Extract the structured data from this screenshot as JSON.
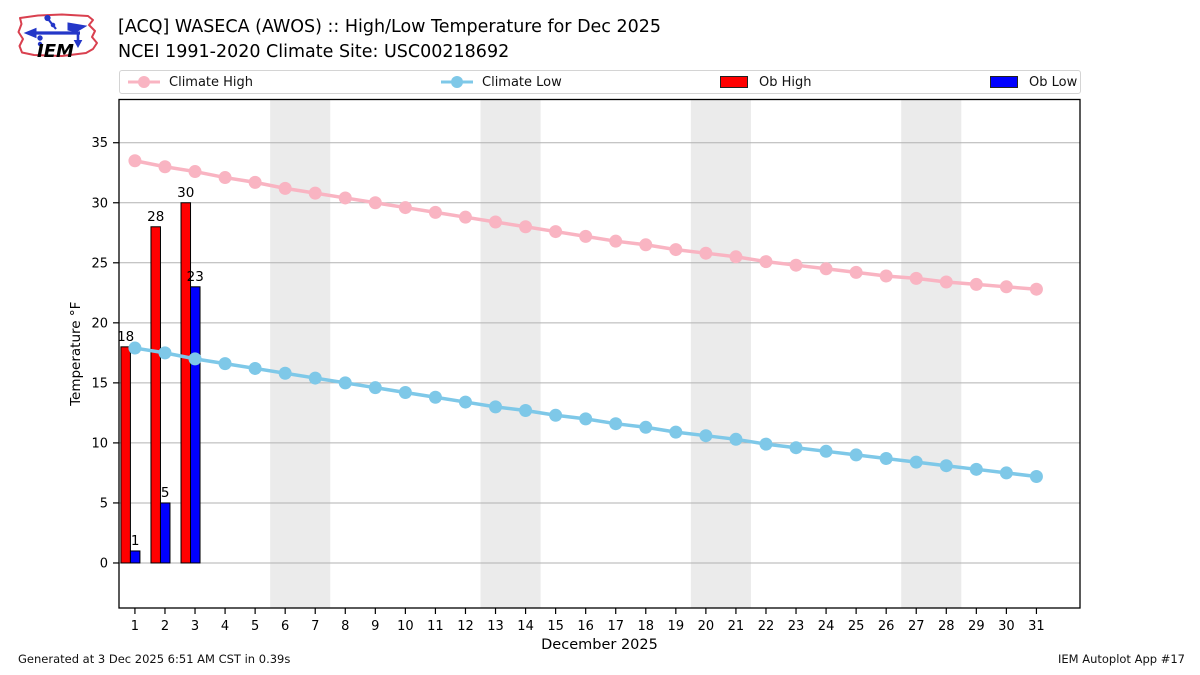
{
  "header": {
    "logo_text": "IEM",
    "title_line1": "[ACQ] WASECA (AWOS) :: High/Low Temperature for Dec 2025",
    "title_line2": "NCEI 1991-2020 Climate Site: USC00218692"
  },
  "legend": {
    "items": [
      {
        "key": "climate-high",
        "label": "Climate High",
        "type": "line-marker",
        "color": "#f9b4c2"
      },
      {
        "key": "climate-low",
        "label": "Climate Low",
        "type": "line-marker",
        "color": "#7ec8e8"
      },
      {
        "key": "ob-high",
        "label": "Ob High",
        "type": "swatch",
        "color": "#ff0000"
      },
      {
        "key": "ob-low",
        "label": "Ob Low",
        "type": "swatch",
        "color": "#0000ff"
      }
    ]
  },
  "footer": {
    "left": "Generated at 3 Dec 2025 6:51 AM CST in 0.39s",
    "right": "IEM Autoplot App #17"
  },
  "chart_data": {
    "type": "line+bar",
    "title": "[ACQ] WASECA (AWOS) :: High/Low Temperature for Dec 2025",
    "subtitle": "NCEI 1991-2020 Climate Site: USC00218692",
    "xlabel": "December 2025",
    "ylabel": "Temperature °F",
    "x": [
      1,
      2,
      3,
      4,
      5,
      6,
      7,
      8,
      9,
      10,
      11,
      12,
      13,
      14,
      15,
      16,
      17,
      18,
      19,
      20,
      21,
      22,
      23,
      24,
      25,
      26,
      27,
      28,
      29,
      30,
      31
    ],
    "xlim": [
      0.47,
      32.45
    ],
    "ylim": [
      -3.75,
      38.6
    ],
    "yticks": [
      0,
      5,
      10,
      15,
      20,
      25,
      30,
      35
    ],
    "grid": true,
    "legend_position": "top",
    "weekend_bands": [
      [
        5.5,
        7.5
      ],
      [
        12.5,
        14.5
      ],
      [
        19.5,
        21.5
      ],
      [
        26.5,
        28.5
      ]
    ],
    "band_color": "#ebebeb",
    "grid_color": "#b2b2b2",
    "series": [
      {
        "name": "Climate High",
        "type": "line",
        "color": "#f9b4c2",
        "values": [
          33.5,
          33.0,
          32.6,
          32.1,
          31.7,
          31.2,
          30.8,
          30.4,
          30.0,
          29.6,
          29.2,
          28.8,
          28.4,
          28.0,
          27.6,
          27.2,
          26.8,
          26.5,
          26.1,
          25.8,
          25.5,
          25.1,
          24.8,
          24.5,
          24.2,
          23.9,
          23.7,
          23.4,
          23.2,
          23.0,
          22.8
        ]
      },
      {
        "name": "Climate Low",
        "type": "line",
        "color": "#7ec8e8",
        "values": [
          17.9,
          17.5,
          17.0,
          16.6,
          16.2,
          15.8,
          15.4,
          15.0,
          14.6,
          14.2,
          13.8,
          13.4,
          13.0,
          12.7,
          12.3,
          12.0,
          11.6,
          11.3,
          10.9,
          10.6,
          10.3,
          9.9,
          9.6,
          9.3,
          9.0,
          8.7,
          8.4,
          8.1,
          7.8,
          7.5,
          7.2
        ]
      },
      {
        "name": "Ob High",
        "type": "bar",
        "color": "#ff0000",
        "days": [
          1,
          2,
          3
        ],
        "values": [
          18,
          28,
          30
        ],
        "labels": [
          "18",
          "28",
          "30"
        ]
      },
      {
        "name": "Ob Low",
        "type": "bar",
        "color": "#0000ff",
        "days": [
          1,
          2,
          3
        ],
        "values": [
          1,
          5,
          23
        ],
        "labels": [
          "1",
          "5",
          "23"
        ]
      }
    ]
  }
}
